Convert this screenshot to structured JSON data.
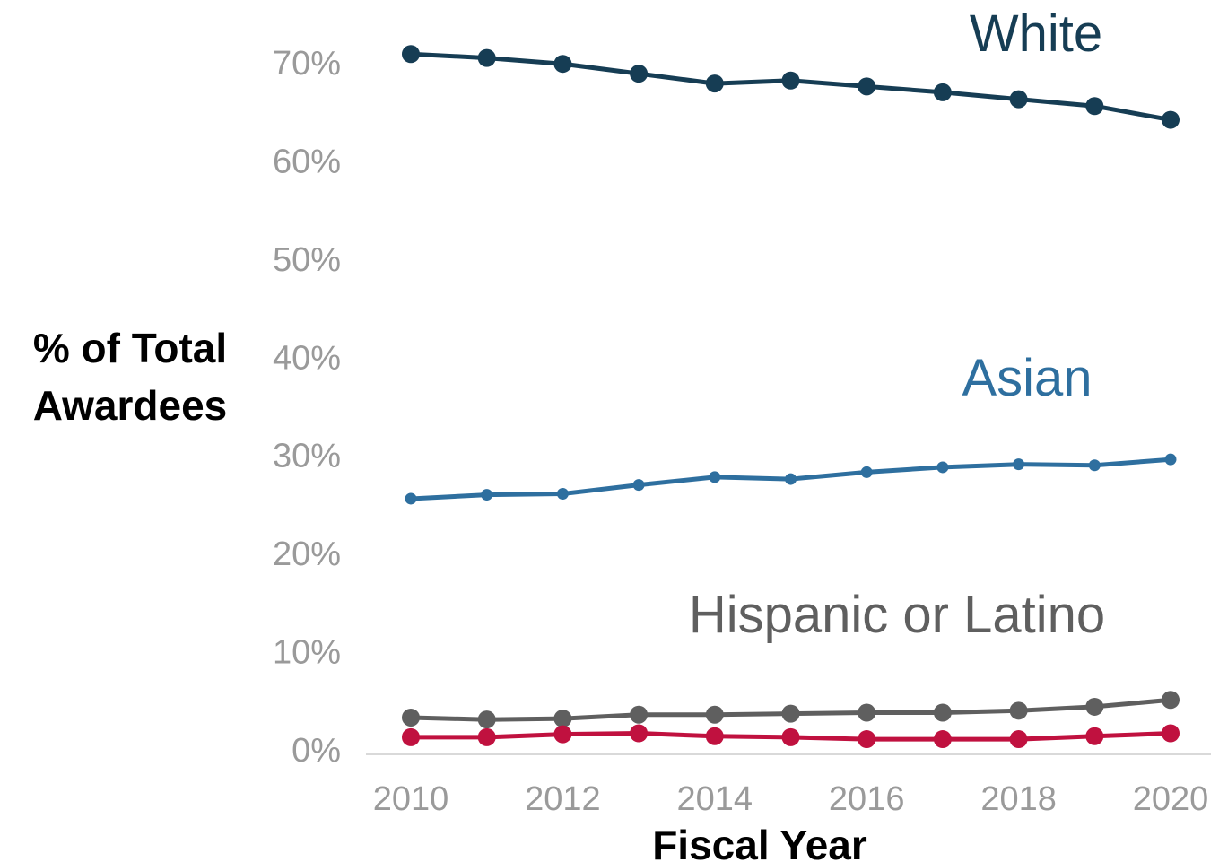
{
  "chart_data": {
    "type": "line",
    "xlabel": "Fiscal Year",
    "ylabel_lines": [
      "% of Total",
      "Awardees"
    ],
    "x": [
      2010,
      2011,
      2012,
      2013,
      2014,
      2015,
      2016,
      2017,
      2018,
      2019,
      2020
    ],
    "x_ticks": [
      2010,
      2012,
      2014,
      2016,
      2018,
      2020
    ],
    "x_tick_labels": [
      "2010",
      "2012",
      "2014",
      "2016",
      "2018",
      "2020"
    ],
    "y_ticks": [
      0,
      10,
      20,
      30,
      40,
      50,
      60,
      70
    ],
    "y_tick_labels": [
      "0%",
      "10%",
      "20%",
      "30%",
      "40%",
      "50%",
      "60%",
      "70%"
    ],
    "ylim": [
      0,
      72
    ],
    "xlim": [
      2010,
      2020
    ],
    "grid": false,
    "series": [
      {
        "name": "White",
        "color": "#163d54",
        "values": [
          70.8,
          70.4,
          69.8,
          68.8,
          67.8,
          68.1,
          67.5,
          66.9,
          66.2,
          65.5,
          64.1
        ]
      },
      {
        "name": "Asian",
        "color": "#2e6f9f",
        "values": [
          25.5,
          25.9,
          26.0,
          26.9,
          27.7,
          27.5,
          28.2,
          28.7,
          29.0,
          28.9,
          29.5
        ]
      },
      {
        "name": "Hispanic or Latino",
        "color": "#5f5f5f",
        "values": [
          3.2,
          3.0,
          3.1,
          3.5,
          3.5,
          3.6,
          3.7,
          3.7,
          3.9,
          4.3,
          5.0
        ]
      },
      {
        "name": "",
        "color": "#c0113f",
        "values": [
          1.2,
          1.2,
          1.5,
          1.6,
          1.3,
          1.2,
          1.0,
          1.0,
          1.0,
          1.3,
          1.6
        ]
      }
    ]
  }
}
